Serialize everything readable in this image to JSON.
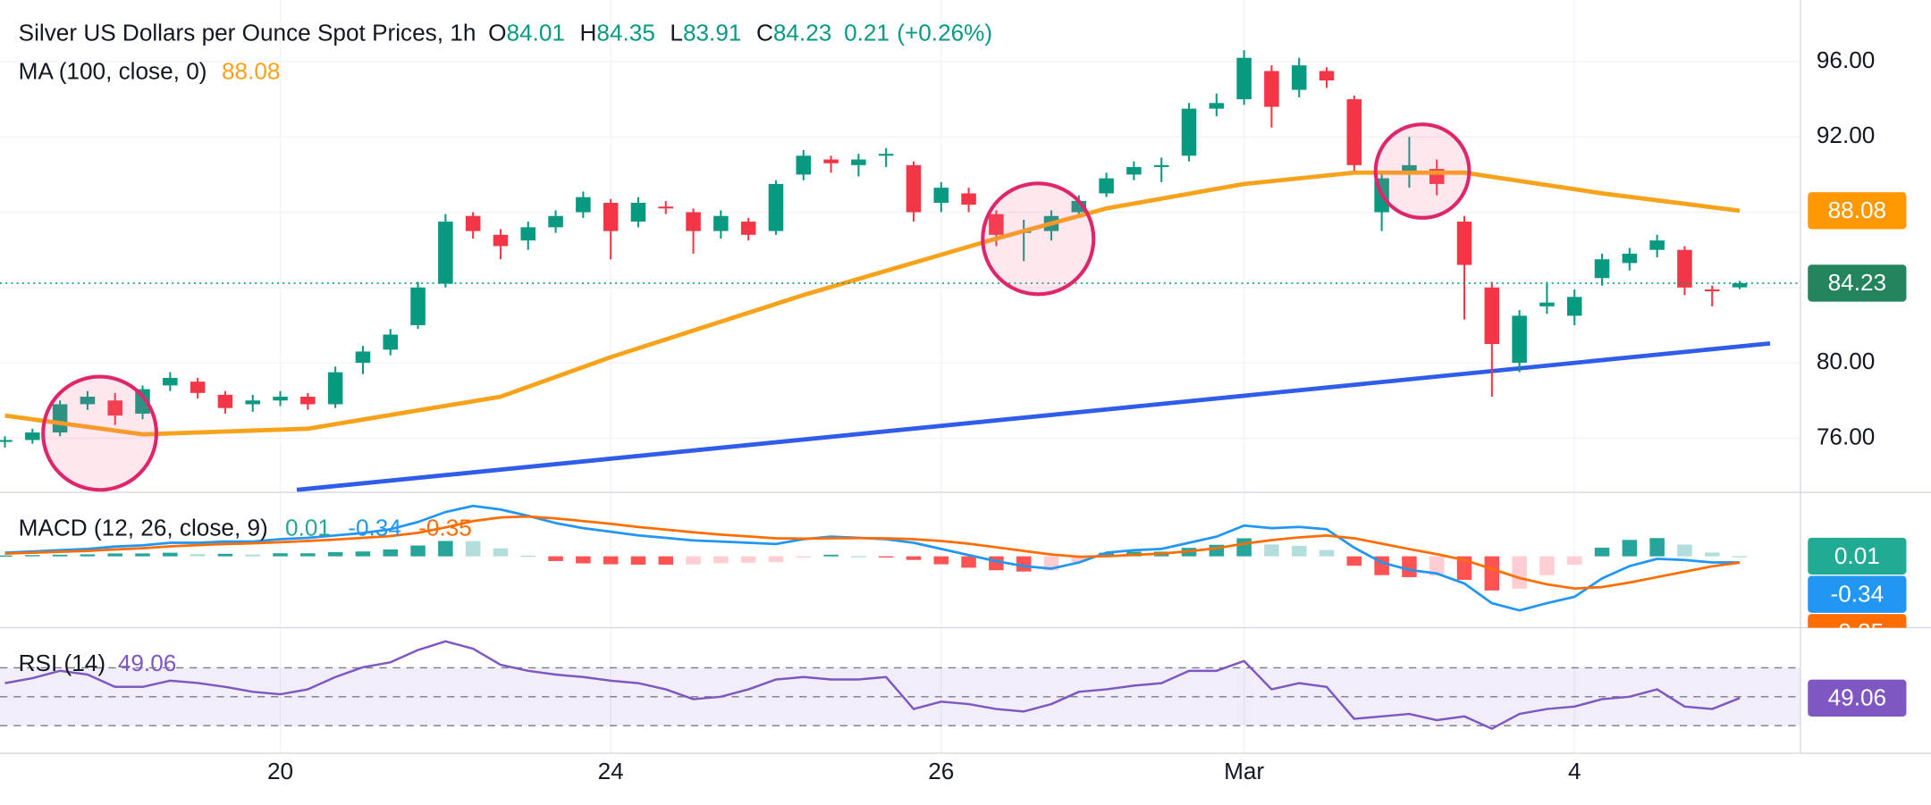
{
  "chart_data": [
    {
      "type": "candlestick",
      "title": "Silver US Dollars per Ounce Spot Prices, 1h",
      "ohlc_labels": [
        "O",
        "H",
        "L",
        "C"
      ],
      "change": 0.21,
      "change_label": "(+0.26%)",
      "categories": [
        null,
        null,
        null,
        null,
        null,
        null,
        null,
        null,
        null,
        null,
        "20",
        null,
        null,
        null,
        null,
        null,
        null,
        null,
        null,
        null,
        null,
        null,
        "24",
        null,
        null,
        null,
        null,
        null,
        null,
        null,
        null,
        null,
        null,
        null,
        "26",
        null,
        null,
        null,
        null,
        null,
        null,
        null,
        null,
        null,
        null,
        "Mar",
        null,
        null,
        null,
        null,
        null,
        null,
        null,
        null,
        null,
        null,
        null,
        "4",
        null,
        null,
        null,
        null,
        null,
        null
      ],
      "open": [
        75.8,
        75.9,
        76.3,
        77.8,
        78.0,
        77.3,
        78.8,
        79.0,
        78.3,
        77.8,
        78.0,
        78.2,
        77.8,
        80.0,
        80.7,
        82.0,
        84.2,
        87.8,
        86.8,
        86.5,
        87.2,
        88.0,
        88.5,
        87.5,
        88.3,
        88.0,
        87.0,
        87.5,
        87.0,
        90.0,
        90.8,
        90.5,
        91.0,
        90.5,
        88.5,
        89.0,
        87.9,
        86.9,
        87.0,
        88.0,
        89.0,
        90.0,
        90.4,
        91.0,
        93.5,
        94.0,
        95.5,
        94.5,
        95.5,
        94.0,
        88.0,
        90.0,
        90.3,
        87.5,
        84.0,
        80.0,
        83.0,
        82.5,
        84.5,
        85.3,
        86.0,
        86.0,
        83.9,
        84.01
      ],
      "high": [
        76.1,
        76.5,
        78.0,
        78.5,
        78.4,
        78.8,
        79.5,
        79.2,
        78.5,
        78.3,
        78.5,
        78.4,
        79.8,
        80.9,
        81.8,
        84.3,
        87.9,
        88.0,
        87.1,
        87.5,
        88.1,
        89.1,
        88.7,
        88.8,
        88.6,
        88.2,
        88.1,
        87.7,
        89.7,
        91.3,
        91.0,
        91.1,
        91.4,
        90.7,
        89.6,
        89.3,
        88.1,
        87.6,
        88.1,
        88.9,
        90.1,
        90.7,
        90.9,
        93.8,
        94.3,
        96.6,
        95.8,
        96.2,
        95.7,
        94.2,
        90.1,
        92.0,
        90.8,
        87.8,
        84.3,
        82.8,
        84.3,
        83.9,
        85.8,
        86.1,
        86.8,
        86.2,
        84.1,
        84.35
      ],
      "low": [
        75.5,
        75.7,
        76.1,
        77.5,
        76.7,
        77.0,
        78.5,
        78.1,
        77.3,
        77.4,
        77.7,
        77.5,
        77.6,
        79.4,
        80.4,
        81.8,
        84.0,
        86.6,
        85.5,
        86.0,
        86.9,
        87.7,
        85.5,
        87.2,
        87.9,
        85.8,
        86.6,
        86.5,
        86.8,
        89.7,
        90.1,
        89.9,
        90.4,
        87.5,
        88.0,
        88.0,
        86.2,
        85.4,
        86.5,
        87.7,
        88.8,
        89.7,
        89.6,
        90.7,
        93.1,
        93.7,
        92.5,
        94.1,
        94.6,
        90.2,
        87.0,
        89.3,
        88.9,
        82.3,
        78.2,
        79.5,
        82.6,
        82.0,
        84.1,
        84.9,
        85.6,
        83.6,
        83.0,
        83.91
      ],
      "close": [
        75.9,
        76.3,
        77.8,
        78.2,
        77.2,
        78.6,
        79.2,
        78.4,
        77.6,
        78.0,
        78.2,
        77.8,
        79.5,
        80.6,
        81.5,
        84.0,
        87.5,
        87.0,
        86.2,
        87.2,
        87.8,
        88.8,
        87.0,
        88.5,
        88.2,
        87.0,
        87.8,
        86.8,
        89.5,
        91.0,
        90.6,
        90.8,
        91.1,
        88.0,
        89.3,
        88.4,
        86.8,
        87.0,
        87.8,
        88.6,
        89.8,
        90.4,
        90.5,
        93.5,
        93.8,
        96.2,
        93.6,
        95.8,
        95.0,
        90.5,
        89.8,
        90.5,
        89.5,
        85.2,
        81.0,
        82.5,
        83.2,
        83.5,
        85.5,
        85.8,
        86.5,
        84.0,
        83.8,
        84.23
      ],
      "up_color": "#089981",
      "down_color": "#f23645",
      "moving_average": {
        "name": "MA (100, close, 0)",
        "color": "#f7a21b",
        "x": [
          0,
          5,
          11,
          18,
          22,
          29,
          36,
          40,
          45,
          49,
          53,
          58,
          63
        ],
        "values": [
          77.2,
          76.2,
          76.5,
          78.2,
          80.3,
          83.6,
          86.6,
          88.2,
          89.5,
          90.1,
          90.1,
          89.0,
          88.08
        ]
      },
      "trendline": {
        "color": "#2f5ce8",
        "x": [
          10.6,
          64.1
        ],
        "values": [
          73.25,
          81.03
        ]
      },
      "ylim": [
        73.12,
        99.27
      ],
      "yticks": [
        {
          "value": 76,
          "label": "76.00"
        },
        {
          "value": 80,
          "label": "80.00"
        },
        {
          "value": 84,
          "label": "84.00"
        },
        {
          "value": 88,
          "label": "88.00"
        },
        {
          "value": 92,
          "label": "92.00"
        },
        {
          "value": 96,
          "label": "96.00"
        }
      ],
      "grid": true
    },
    {
      "type": "macd",
      "title": "MACD (12, 26, close, 9)",
      "series": [
        {
          "color": "#2196f3",
          "values": [
            0.2,
            0.27,
            0.34,
            0.41,
            0.54,
            0.61,
            0.75,
            0.75,
            0.82,
            0.82,
            0.95,
            1.02,
            1.16,
            1.29,
            1.5,
            1.9,
            2.45,
            2.79,
            2.59,
            2.24,
            1.84,
            1.56,
            1.36,
            1.16,
            1.02,
            0.88,
            0.82,
            0.75,
            0.68,
            0.95,
            1.09,
            1.02,
            0.95,
            0.75,
            0.41,
            0.07,
            -0.27,
            -0.54,
            -0.68,
            -0.34,
            0.2,
            0.34,
            0.41,
            0.75,
            1.09,
            1.7,
            1.56,
            1.63,
            1.5,
            0.48,
            -0.34,
            -0.75,
            -0.95,
            -1.5,
            -2.59,
            -2.99,
            -2.59,
            -2.24,
            -1.22,
            -0.54,
            -0.14,
            -0.2,
            -0.34,
            -0.34
          ]
        },
        {
          "color": "#ff6d00",
          "values": [
            0.15,
            0.2,
            0.25,
            0.3,
            0.38,
            0.45,
            0.55,
            0.62,
            0.68,
            0.72,
            0.78,
            0.85,
            0.93,
            1.02,
            1.12,
            1.3,
            1.6,
            1.95,
            2.15,
            2.2,
            2.1,
            1.95,
            1.8,
            1.62,
            1.48,
            1.33,
            1.2,
            1.1,
            1.0,
            0.98,
            1.0,
            1.01,
            1.0,
            0.95,
            0.85,
            0.7,
            0.5,
            0.3,
            0.1,
            -0.02,
            0.0,
            0.08,
            0.15,
            0.28,
            0.45,
            0.7,
            0.9,
            1.05,
            1.15,
            1.0,
            0.7,
            0.4,
            0.12,
            -0.2,
            -0.7,
            -1.2,
            -1.55,
            -1.78,
            -1.7,
            -1.45,
            -1.15,
            -0.85,
            -0.55,
            -0.35
          ]
        }
      ],
      "histogram": {
        "values": [
          0.05,
          0.07,
          0.09,
          0.11,
          0.16,
          0.16,
          0.2,
          0.13,
          0.14,
          0.1,
          0.17,
          0.17,
          0.23,
          0.27,
          0.38,
          0.6,
          0.85,
          0.84,
          0.44,
          0.04,
          -0.26,
          -0.39,
          -0.44,
          -0.46,
          -0.46,
          -0.45,
          -0.38,
          -0.35,
          -0.32,
          -0.03,
          0.09,
          0.01,
          -0.05,
          -0.2,
          -0.44,
          -0.63,
          -0.77,
          -0.84,
          -0.78,
          -0.32,
          0.2,
          0.26,
          0.26,
          0.47,
          0.64,
          1.0,
          0.66,
          0.58,
          0.35,
          -0.52,
          -1.04,
          -1.15,
          -1.07,
          -1.3,
          -1.89,
          -1.79,
          -1.04,
          -0.46,
          0.48,
          0.91,
          1.01,
          0.65,
          0.21,
          0.01
        ],
        "colors": [
          "#26a69a",
          "#b2dfdb",
          "#ff5252",
          "#ffcdd2"
        ]
      },
      "ylim": [
        -3.95,
        3.54
      ]
    },
    {
      "type": "rsi",
      "title": "RSI (14)",
      "color": "#7e57c2",
      "values": [
        59.4,
        62.8,
        67.9,
        65.3,
        56.8,
        56.8,
        61.1,
        59.5,
        56.8,
        53.4,
        51.7,
        55.1,
        63.6,
        70.4,
        73.8,
        82.3,
        88.3,
        83.2,
        72.1,
        67.9,
        65.3,
        63.6,
        61.1,
        59.4,
        55.1,
        48.3,
        50,
        55.1,
        61.9,
        63.6,
        61.9,
        61.9,
        63.6,
        41.5,
        46.6,
        44.9,
        41.5,
        39.8,
        44.9,
        53.4,
        55.1,
        57.7,
        59.4,
        67.9,
        67.9,
        74.7,
        55.1,
        59.4,
        56.8,
        34.7,
        36.4,
        38.1,
        33.8,
        36.4,
        27.9,
        38.1,
        41.5,
        43.2,
        48.3,
        50,
        55.1,
        43.2,
        41.5,
        49.06
      ],
      "levels": [
        70,
        50,
        30
      ],
      "ylim": [
        10.9,
        97.7
      ]
    }
  ]
}
